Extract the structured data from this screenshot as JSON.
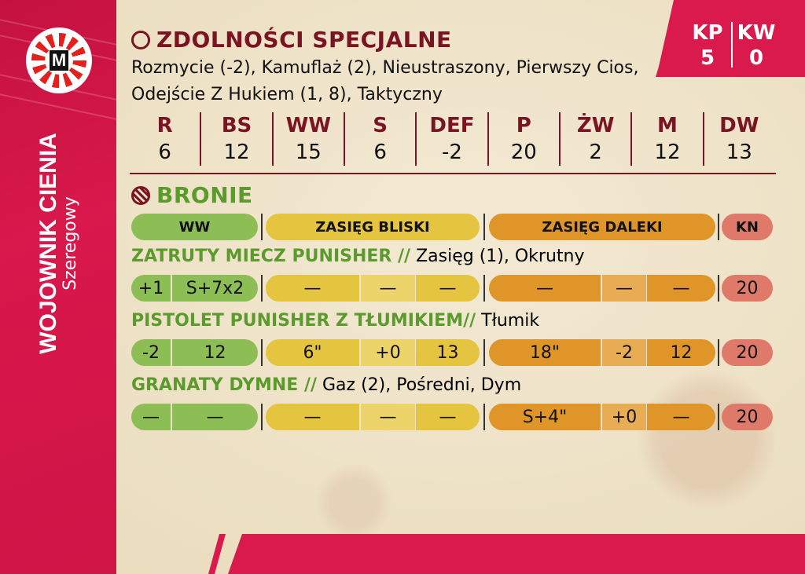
{
  "unit": {
    "name": "WOJOWNIK CIENIA",
    "rank": "Szeregowy",
    "logo": "M"
  },
  "kp": {
    "label": "KP",
    "value": "5"
  },
  "kw": {
    "label": "KW",
    "value": "0"
  },
  "abilities": {
    "title": "ZDOLNOŚCI SPECJALNE",
    "icon": "person-icon",
    "text": "Rozmycie (-2), Kamuflaż (2), Nieustraszony, Pierwszy Cios, Odejście Z Hukiem (1, 8), Taktyczny"
  },
  "stats": [
    {
      "h": "R",
      "v": "6"
    },
    {
      "h": "BS",
      "v": "12"
    },
    {
      "h": "WW",
      "v": "15"
    },
    {
      "h": "S",
      "v": "6"
    },
    {
      "h": "DEF",
      "v": "-2"
    },
    {
      "h": "P",
      "v": "20"
    },
    {
      "h": "ŻW",
      "v": "2"
    },
    {
      "h": "M",
      "v": "12"
    },
    {
      "h": "DW",
      "v": "13"
    }
  ],
  "weapons": {
    "title": "BRONIE",
    "icon": "crosshair-icon",
    "headers": {
      "ww": "WW",
      "close": "ZASIĘG BLISKI",
      "far": "ZASIĘG DALEKI",
      "kn": "KN"
    },
    "colors": {
      "ww": "#8dbd55",
      "close": "#e5c43f",
      "far": "#e09528",
      "kn": "#df7a6b"
    },
    "rows": [
      {
        "name": "ZATRUTY MIECZ PUNISHER",
        "sep": " //",
        "traits": " Zasięg (1), Okrutny",
        "ww": [
          "+1",
          "S+7x2"
        ],
        "close": [
          "—",
          "—",
          "—"
        ],
        "far": [
          "—",
          "—",
          "—"
        ],
        "kn": "20"
      },
      {
        "name": "PISTOLET PUNISHER Z TŁUMIKIEM",
        "sep": "//",
        "traits": " Tłumik",
        "ww": [
          "-2",
          "12"
        ],
        "close": [
          "6\"",
          "+0",
          "13"
        ],
        "far": [
          "18\"",
          "-2",
          "12"
        ],
        "kn": "20"
      },
      {
        "name": "GRANATY DYMNE",
        "sep": " //",
        "traits": " Gaz (2), Pośredni, Dym",
        "ww": [
          "—",
          "—"
        ],
        "close": [
          "—",
          "—",
          "—"
        ],
        "far": [
          "S+4\"",
          "+0",
          "—"
        ],
        "kn": "20"
      }
    ]
  }
}
